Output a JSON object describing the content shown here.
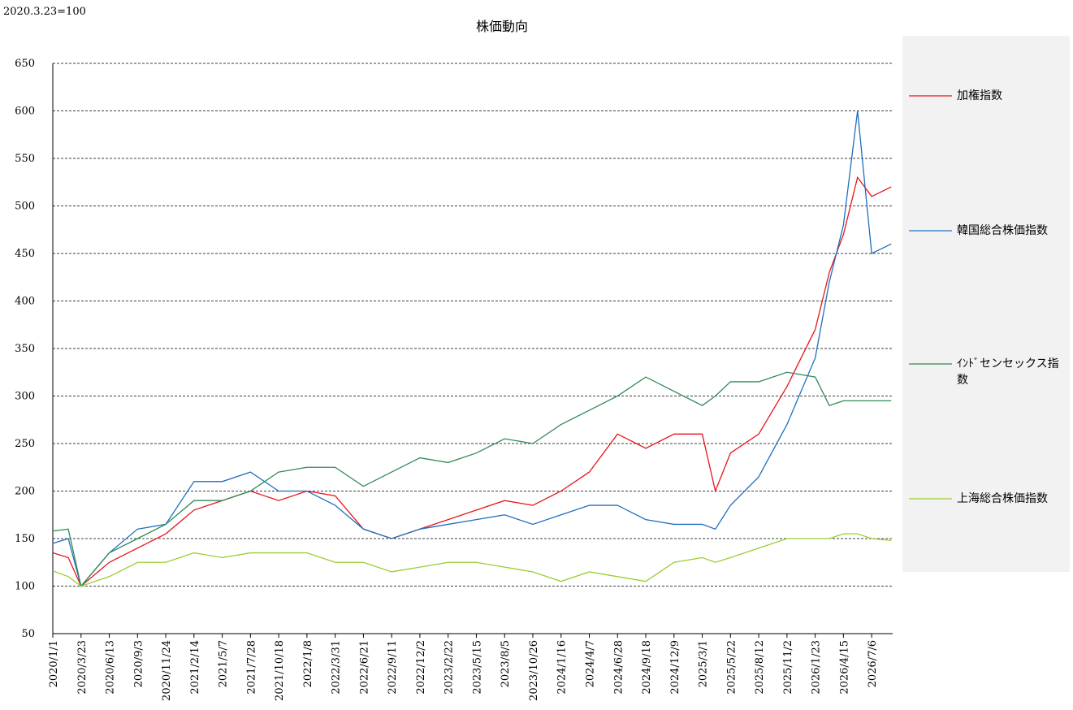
{
  "chart_data": {
    "type": "line",
    "title": "株価動向",
    "unit_note": "2020.3.23=100",
    "x": [
      "2020/1/1",
      "2020/2/15",
      "2020/3/23",
      "2020/6/13",
      "2020/9/3",
      "2020/11/24",
      "2021/2/14",
      "2021/5/7",
      "2021/7/28",
      "2021/10/18",
      "2022/1/8",
      "2022/3/31",
      "2022/6/21",
      "2022/9/11",
      "2022/12/2",
      "2023/2/22",
      "2023/5/15",
      "2023/8/5",
      "2023/10/26",
      "2024/1/16",
      "2024/4/7",
      "2024/6/28",
      "2024/9/18",
      "2024/12/9",
      "2025/3/1",
      "2025/4/8",
      "2025/5/22",
      "2025/8/12",
      "2025/11/2",
      "2026/1/23",
      "2026/3/5",
      "2026/4/15",
      "2026/5/26",
      "2026/7/6",
      "2026/9/1"
    ],
    "xlim": [
      "2020/1/1",
      "2026/9/5"
    ],
    "xticks": [
      "2020/1/1",
      "2020/3/23",
      "2020/6/13",
      "2020/9/3",
      "2020/11/24",
      "2021/2/14",
      "2021/5/7",
      "2021/7/28",
      "2021/10/18",
      "2022/1/8",
      "2022/3/31",
      "2022/6/21",
      "2022/9/11",
      "2022/12/2",
      "2023/2/22",
      "2023/5/15",
      "2023/8/5",
      "2023/10/26",
      "2024/1/16",
      "2024/4/7",
      "2024/6/28",
      "2024/9/18",
      "2024/12/9",
      "2025/3/1",
      "2025/5/22",
      "2025/8/12",
      "2025/11/2",
      "2026/1/23",
      "2026/4/15",
      "2026/7/6"
    ],
    "ylim": [
      50,
      650
    ],
    "yticks": [
      50,
      100,
      150,
      200,
      250,
      300,
      350,
      400,
      450,
      500,
      550,
      600,
      650
    ],
    "grid": true,
    "series": [
      {
        "name": "加権指数",
        "color": "#e8141c",
        "values": [
          135,
          130,
          100,
          125,
          140,
          155,
          180,
          190,
          200,
          190,
          200,
          195,
          160,
          150,
          160,
          170,
          180,
          190,
          185,
          200,
          220,
          260,
          245,
          260,
          260,
          200,
          240,
          260,
          310,
          370,
          430,
          470,
          530,
          510,
          520
        ]
      },
      {
        "name": "韓国総合株価指数",
        "color": "#1f6fc0",
        "values": [
          145,
          150,
          100,
          135,
          160,
          165,
          210,
          210,
          220,
          200,
          200,
          185,
          160,
          150,
          160,
          165,
          170,
          175,
          165,
          175,
          185,
          185,
          170,
          165,
          165,
          160,
          185,
          215,
          270,
          340,
          420,
          480,
          600,
          450,
          460
        ]
      },
      {
        "name": "ｲﾝﾄﾞセンセックス指数",
        "color": "#2e8b57",
        "values": [
          158,
          160,
          100,
          135,
          150,
          165,
          190,
          190,
          200,
          220,
          225,
          225,
          205,
          220,
          235,
          230,
          240,
          255,
          250,
          270,
          285,
          300,
          320,
          305,
          290,
          300,
          315,
          315,
          325,
          320,
          290,
          295,
          295,
          295,
          295
        ]
      },
      {
        "name": "上海総合株価指数",
        "color": "#9acd32",
        "values": [
          116,
          110,
          100,
          110,
          125,
          125,
          135,
          130,
          135,
          135,
          135,
          125,
          125,
          115,
          120,
          125,
          125,
          120,
          115,
          105,
          115,
          110,
          105,
          125,
          130,
          125,
          130,
          140,
          150,
          150,
          150,
          155,
          155,
          150,
          148
        ]
      }
    ]
  }
}
